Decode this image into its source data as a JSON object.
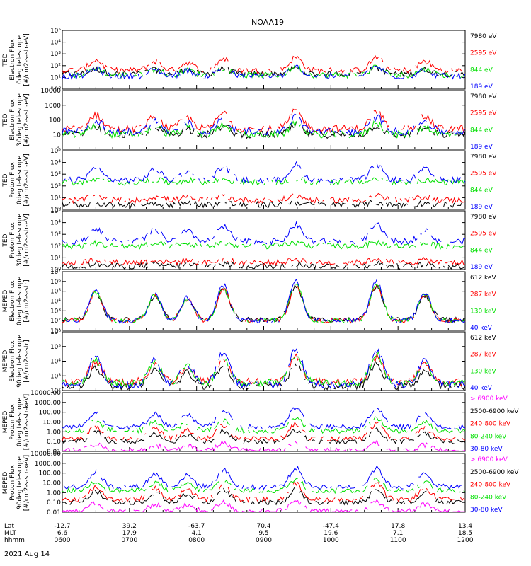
{
  "title": "NOAA19",
  "time_axis": {
    "row_labels": [
      "Lat",
      "MLT",
      "hhmm"
    ],
    "date": "2021 Aug 14",
    "ticks": [
      {
        "lat": "-12.7",
        "mlt": "6.6",
        "hhmm": "0600"
      },
      {
        "lat": "39.2",
        "mlt": "17.9",
        "hhmm": "0700"
      },
      {
        "lat": "-63.7",
        "mlt": "4.1",
        "hhmm": "0800"
      },
      {
        "lat": "70.4",
        "mlt": "9.5",
        "hhmm": "0900"
      },
      {
        "lat": "-47.4",
        "mlt": "19.6",
        "hhmm": "1000"
      },
      {
        "lat": "17.8",
        "mlt": "7.1",
        "hhmm": "1100"
      },
      {
        "lat": "13.4",
        "mlt": "18.5",
        "hhmm": "1200"
      }
    ]
  },
  "colors": {
    "black": "#000000",
    "red": "#ff0000",
    "green": "#00e000",
    "blue": "#0000ff",
    "magenta": "#ff00ff"
  },
  "chart_data": [
    {
      "type": "line",
      "ylabel": [
        "TED",
        "Electron Flux",
        "0deg telescope",
        "[#/cm2-s-str-eV]"
      ],
      "yscale": "log",
      "ylim": [
        1,
        100000
      ],
      "yticks": [
        "10⁰",
        "10¹",
        "10²",
        "10³",
        "10⁴",
        "10⁵"
      ],
      "series": [
        {
          "name": "7980 eV",
          "color": "#000000",
          "base": 1.3,
          "pk": 0.5
        },
        {
          "name": "2595 eV",
          "color": "#ff0000",
          "base": 1.6,
          "pk": 1.1
        },
        {
          "name": "844 eV",
          "color": "#00e000",
          "base": 1.2,
          "pk": 0.7
        },
        {
          "name": "189 eV",
          "color": "#0000ff",
          "base": 1.1,
          "pk": 0.8
        }
      ]
    },
    {
      "type": "line",
      "ylabel": [
        "TED",
        "Electron Flux",
        "30deg telescope",
        "[#/cm2-s-str-eV]"
      ],
      "yscale": "log",
      "ylim": [
        1,
        10000
      ],
      "yticks": [
        "1",
        "10",
        "100",
        "1000",
        "10000"
      ],
      "series": [
        {
          "name": "7980 eV",
          "color": "#000000",
          "base": 1.0,
          "pk": 0.6
        },
        {
          "name": "2595 eV",
          "color": "#ff0000",
          "base": 1.4,
          "pk": 1.2
        },
        {
          "name": "844 eV",
          "color": "#00e000",
          "base": 1.0,
          "pk": 0.8
        },
        {
          "name": "189 eV",
          "color": "#0000ff",
          "base": 1.2,
          "pk": 1.0
        }
      ]
    },
    {
      "type": "line",
      "ylabel": [
        "TED",
        "Proton Flux",
        "0deg telescope",
        "[#/cm2-s-str-eV]"
      ],
      "yscale": "log",
      "ylim": [
        1,
        100000
      ],
      "yticks": [
        "10⁰",
        "10¹",
        "10²",
        "10³",
        "10⁴",
        "10⁵"
      ],
      "series": [
        {
          "name": "7980 eV",
          "color": "#000000",
          "base": 0.4,
          "pk": 0.2
        },
        {
          "name": "2595 eV",
          "color": "#ff0000",
          "base": 0.8,
          "pk": 0.4
        },
        {
          "name": "844 eV",
          "color": "#00e000",
          "base": 2.3,
          "pk": 0.3
        },
        {
          "name": "189 eV",
          "color": "#0000ff",
          "base": 2.5,
          "pk": 1.3
        }
      ]
    },
    {
      "type": "line",
      "ylabel": [
        "TED",
        "Proton Flux",
        "30deg telescope",
        "[#/cm2-s-str-eV]"
      ],
      "yscale": "log",
      "ylim": [
        1,
        100000
      ],
      "yticks": [
        "10⁰",
        "10¹",
        "10²",
        "10³",
        "10⁴",
        "10⁵"
      ],
      "series": [
        {
          "name": "7980 eV",
          "color": "#000000",
          "base": 0.3,
          "pk": 0.2
        },
        {
          "name": "2595 eV",
          "color": "#ff0000",
          "base": 0.6,
          "pk": 0.3
        },
        {
          "name": "844 eV",
          "color": "#00e000",
          "base": 2.0,
          "pk": 0.3
        },
        {
          "name": "189 eV",
          "color": "#0000ff",
          "base": 2.4,
          "pk": 1.4
        }
      ]
    },
    {
      "type": "line",
      "ylabel": [
        "MEPED",
        "Electron Flux",
        "0deg telescope",
        "[#/cm2-s-str]"
      ],
      "yscale": "log",
      "ylim": [
        10,
        10000000
      ],
      "yticks": [
        "10¹",
        "10²",
        "10³",
        "10⁴",
        "10⁵",
        "10⁶",
        "10⁷"
      ],
      "series": [
        {
          "name": "612 keV",
          "color": "#000000",
          "base": 2.1,
          "pk": 3.4
        },
        {
          "name": "287 keV",
          "color": "#ff0000",
          "base": 2.0,
          "pk": 3.6
        },
        {
          "name": "130 keV",
          "color": "#00e000",
          "base": 2.0,
          "pk": 3.7
        },
        {
          "name": "40 keV",
          "color": "#0000ff",
          "base": 2.0,
          "pk": 4.0
        }
      ]
    },
    {
      "type": "line",
      "ylabel": [
        "MEPED",
        "Electron Flux",
        "90deg telescope",
        "[#/cm2-s-str]"
      ],
      "yscale": "log",
      "ylim": [
        100,
        1000000
      ],
      "yticks": [
        "10²",
        "10³",
        "10⁴",
        "10⁵",
        "10⁶"
      ],
      "series": [
        {
          "name": "612 keV",
          "color": "#000000",
          "base": 2.3,
          "pk": 1.5
        },
        {
          "name": "287 keV",
          "color": "#ff0000",
          "base": 2.6,
          "pk": 1.7
        },
        {
          "name": "130 keV",
          "color": "#00e000",
          "base": 2.5,
          "pk": 2.0
        },
        {
          "name": "40 keV",
          "color": "#0000ff",
          "base": 2.4,
          "pk": 2.4
        }
      ]
    },
    {
      "type": "line",
      "ylabel": [
        "MEPED",
        "Proton Flux",
        "0deg telescope",
        "[#/cm2-s-str-keV]"
      ],
      "yscale": "log",
      "ylim": [
        0.01,
        10000
      ],
      "yticks": [
        "0.01",
        "0.10",
        "1.00",
        "10.00",
        "100.00",
        "1000.00",
        "10000.00"
      ],
      "series": [
        {
          "name": "> 6900 keV",
          "color": "#ff00ff",
          "base": -1.9,
          "pk": 0.8
        },
        {
          "name": "2500-6900 keV",
          "color": "#000000",
          "base": -1.0,
          "pk": 1.2
        },
        {
          "name": "240-800 keV",
          "color": "#ff0000",
          "base": -0.7,
          "pk": 1.5
        },
        {
          "name": "80-240 keV",
          "color": "#00e000",
          "base": 0.1,
          "pk": 1.3
        },
        {
          "name": "30-80 keV",
          "color": "#0000ff",
          "base": 0.5,
          "pk": 2.0
        }
      ]
    },
    {
      "type": "line",
      "ylabel": [
        "MEPED",
        "Proton Flux",
        "90deg telescope",
        "[#/cm2-s-str-keV]"
      ],
      "yscale": "log",
      "ylim": [
        0.01,
        10000
      ],
      "yticks": [
        "0.01",
        "0.10",
        "1.00",
        "10.00",
        "100.00",
        "1000.00",
        "10000.00"
      ],
      "series": [
        {
          "name": "> 6900 keV",
          "color": "#ff00ff",
          "base": -1.9,
          "pk": 1.0
        },
        {
          "name": "2500-6900 keV",
          "color": "#000000",
          "base": -1.0,
          "pk": 1.4
        },
        {
          "name": "240-800 keV",
          "color": "#ff0000",
          "base": -0.7,
          "pk": 1.6
        },
        {
          "name": "80-240 keV",
          "color": "#00e000",
          "base": 0.2,
          "pk": 1.2
        },
        {
          "name": "30-80 keV",
          "color": "#0000ff",
          "base": 0.6,
          "pk": 1.9
        }
      ]
    }
  ]
}
